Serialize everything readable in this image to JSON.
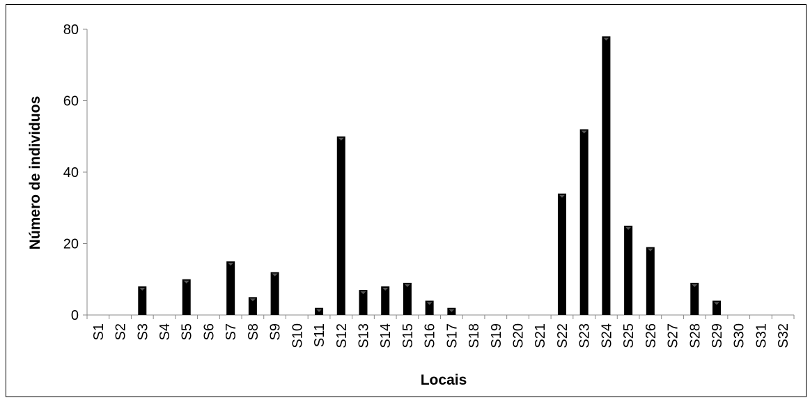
{
  "chart_data": {
    "type": "bar",
    "title": "",
    "xlabel": "Locais",
    "ylabel": "Número de individuos",
    "ylim": [
      0,
      80
    ],
    "yticks": [
      "0",
      "20",
      "40",
      "60",
      "80"
    ],
    "grid": false,
    "categories": [
      "S1",
      "S2",
      "S3",
      "S4",
      "S5",
      "S6",
      "S7",
      "S8",
      "S9",
      "S10",
      "S11",
      "S12",
      "S13",
      "S14",
      "S15",
      "S16",
      "S17",
      "S18",
      "S19",
      "S20",
      "S21",
      "S22",
      "S23",
      "S24",
      "S25",
      "S26",
      "S27",
      "S28",
      "S29",
      "S30",
      "S31",
      "S32"
    ],
    "values": [
      0,
      0,
      8,
      0,
      10,
      0,
      15,
      5,
      12,
      0,
      2,
      50,
      7,
      8,
      9,
      4,
      2,
      0,
      0,
      0,
      0,
      34,
      52,
      78,
      25,
      19,
      0,
      9,
      4,
      0,
      0,
      0
    ],
    "bar_color": "#000000"
  }
}
